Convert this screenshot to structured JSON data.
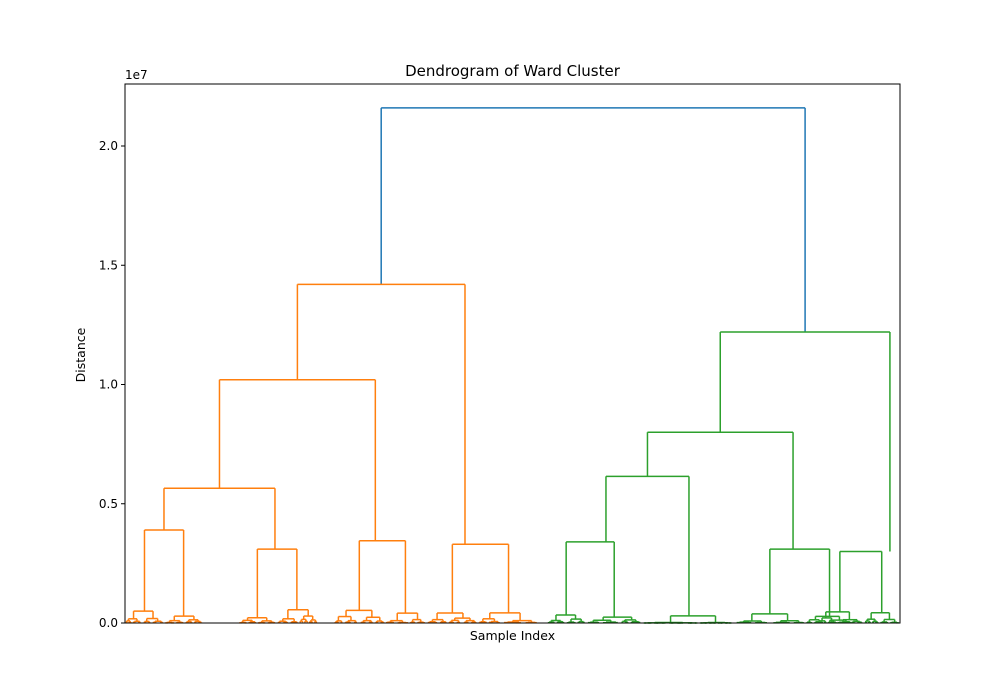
{
  "chart_data": {
    "type": "dendrogram",
    "title": "Dendrogram of Ward Cluster",
    "xlabel": "Sample Index",
    "ylabel": "Distance",
    "y_scale_label": "1e7",
    "y_multiplier": 10000000,
    "ylim": [
      0,
      22600000
    ],
    "yticks": [
      {
        "value": 0,
        "label": "0.0"
      },
      {
        "value": 5000000,
        "label": "0.5"
      },
      {
        "value": 10000000,
        "label": "1.0"
      },
      {
        "value": 15000000,
        "label": "1.5"
      },
      {
        "value": 20000000,
        "label": "2.0"
      }
    ],
    "xlim": [
      0,
      1000
    ],
    "colors": {
      "above_threshold": "#1f77b4",
      "cluster_1": "#ff7f0e",
      "cluster_2": "#2ca02c"
    },
    "grid": false,
    "merges": [
      {
        "id": "root",
        "left": "c1",
        "right": "c2",
        "height": 21600000,
        "color": "above_threshold"
      },
      {
        "id": "c1",
        "left": "c1a",
        "right": "c1b",
        "height": 14200000,
        "color": "cluster_1"
      },
      {
        "id": "c1a",
        "left": "c1a1",
        "right": "c1a2",
        "height": 10200000,
        "color": "cluster_1"
      },
      {
        "id": "c1a1",
        "left": "o1",
        "right": "o2",
        "height": 5650000,
        "color": "cluster_1"
      },
      {
        "id": "o1",
        "height": 3900000,
        "color": "cluster_1"
      },
      {
        "id": "o2",
        "height": 3100000,
        "color": "cluster_1"
      },
      {
        "id": "c1a2",
        "height": 3450000,
        "color": "cluster_1"
      },
      {
        "id": "c1b",
        "height": 3300000,
        "color": "cluster_1"
      },
      {
        "id": "c2",
        "left": "c2a",
        "right": "c2b",
        "height": 12200000,
        "color": "cluster_2"
      },
      {
        "id": "c2a",
        "left": "c2a1",
        "right": "c2a2",
        "height": 8000000,
        "color": "cluster_2"
      },
      {
        "id": "c2a1",
        "left": "g1",
        "right": "g2",
        "height": 6150000,
        "color": "cluster_2"
      },
      {
        "id": "g1",
        "height": 3400000,
        "color": "cluster_2"
      },
      {
        "id": "g2",
        "height": 300000,
        "color": "cluster_2"
      },
      {
        "id": "c2a2",
        "height": 3100000,
        "color": "cluster_2"
      },
      {
        "id": "c2b",
        "height": 3000000,
        "color": "cluster_2"
      }
    ]
  }
}
